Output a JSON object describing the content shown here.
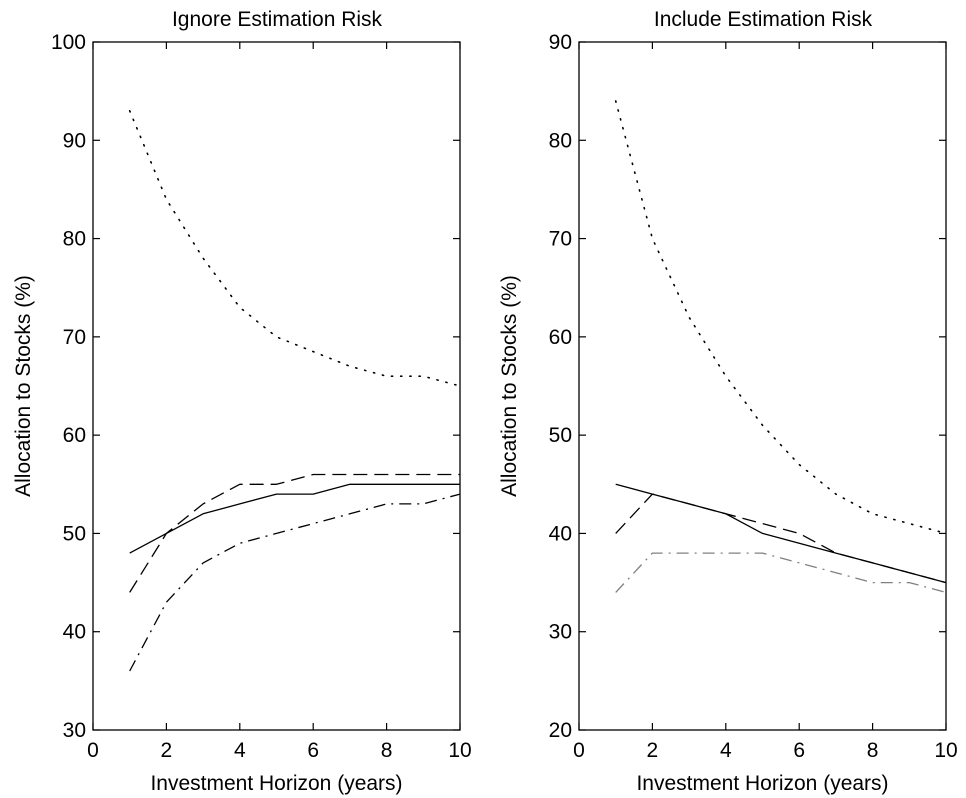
{
  "chart_data": [
    {
      "type": "line",
      "title": "Ignore Estimation Risk",
      "xlabel": "Investment Horizon (years)",
      "ylabel": "Allocation to Stocks (%)",
      "xlim": [
        0,
        10
      ],
      "ylim": [
        30,
        100
      ],
      "xticks": [
        "0",
        "2",
        "4",
        "6",
        "8",
        "10"
      ],
      "yticks": [
        "30",
        "40",
        "50",
        "60",
        "70",
        "80",
        "90",
        "100"
      ],
      "grid": false,
      "series": [
        {
          "style": "solid",
          "color": "#000000",
          "x": [
            1,
            2,
            3,
            4,
            5,
            6,
            7,
            8,
            9,
            10
          ],
          "y": [
            48,
            50,
            52,
            53,
            54,
            54,
            55,
            55,
            55,
            55
          ]
        },
        {
          "style": "dashed",
          "color": "#000000",
          "x": [
            1,
            2,
            3,
            4,
            5,
            6,
            7,
            8,
            9,
            10
          ],
          "y": [
            44,
            50,
            53,
            55,
            55,
            56,
            56,
            56,
            56,
            56
          ]
        },
        {
          "style": "dashdot",
          "color": "#000000",
          "x": [
            1,
            2,
            3,
            4,
            5,
            6,
            7,
            8,
            9,
            10
          ],
          "y": [
            36,
            43,
            47,
            49,
            50,
            51,
            52,
            53,
            53,
            54
          ]
        },
        {
          "style": "dotted",
          "color": "#000000",
          "x": [
            1,
            2,
            3,
            4,
            5,
            6,
            7,
            8,
            9,
            10
          ],
          "y": [
            93,
            84,
            78,
            73,
            70,
            68.5,
            67,
            66,
            66,
            65
          ]
        }
      ]
    },
    {
      "type": "line",
      "title": "Include Estimation Risk",
      "xlabel": "Investment Horizon (years)",
      "ylabel": "Allocation to Stocks (%)",
      "xlim": [
        0,
        10
      ],
      "ylim": [
        20,
        90
      ],
      "xticks": [
        "0",
        "2",
        "4",
        "6",
        "8",
        "10"
      ],
      "yticks": [
        "20",
        "30",
        "40",
        "50",
        "60",
        "70",
        "80",
        "90"
      ],
      "grid": false,
      "series": [
        {
          "style": "solid",
          "color": "#000000",
          "x": [
            1,
            2,
            3,
            4,
            5,
            6,
            7,
            8,
            9,
            10
          ],
          "y": [
            45,
            44,
            43,
            42,
            40,
            39,
            38,
            37,
            36,
            35
          ]
        },
        {
          "style": "dashed",
          "color": "#000000",
          "x": [
            1,
            2,
            3,
            4,
            5,
            6,
            7,
            8,
            9,
            10
          ],
          "y": [
            40,
            44,
            43,
            42,
            41,
            40,
            38,
            37,
            36,
            35
          ]
        },
        {
          "style": "dashdot",
          "color": "#808080",
          "x": [
            1,
            2,
            3,
            4,
            5,
            6,
            7,
            8,
            9,
            10
          ],
          "y": [
            34,
            38,
            38,
            38,
            38,
            37,
            36,
            35,
            35,
            34
          ]
        },
        {
          "style": "dotted",
          "color": "#000000",
          "x": [
            1,
            2,
            3,
            4,
            5,
            6,
            7,
            8,
            9,
            10
          ],
          "y": [
            84,
            70,
            62,
            56,
            51,
            47,
            44,
            42,
            41,
            40
          ]
        }
      ]
    }
  ]
}
